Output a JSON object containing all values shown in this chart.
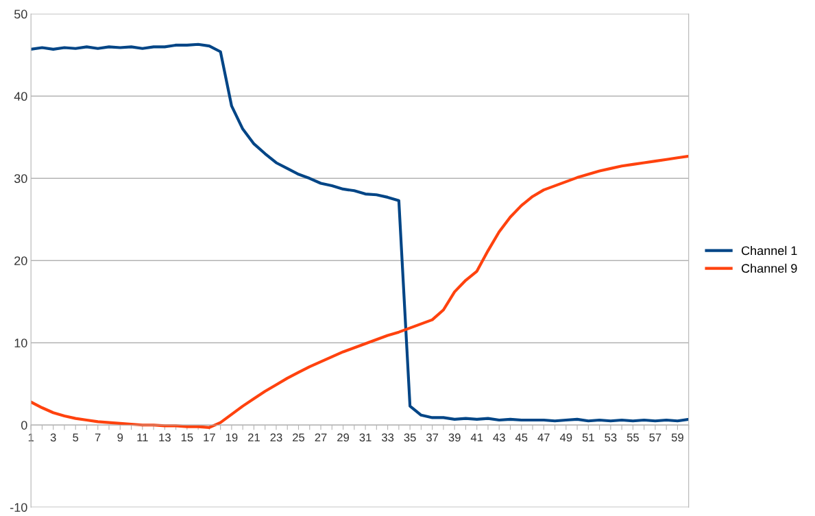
{
  "chart_data": {
    "type": "line",
    "categories": [
      "1",
      null,
      "3",
      null,
      "5",
      null,
      "7",
      null,
      "9",
      null,
      "11",
      null,
      "13",
      null,
      "15",
      null,
      "17",
      null,
      "19",
      null,
      "21",
      null,
      "23",
      null,
      "25",
      null,
      "27",
      null,
      "29",
      null,
      "31",
      null,
      "33",
      null,
      "35",
      null,
      "37",
      null,
      "39",
      null,
      "41",
      null,
      "43",
      null,
      "45",
      null,
      "47",
      null,
      "49",
      null,
      "51",
      null,
      "53",
      null,
      "55",
      null,
      "57",
      null,
      "59",
      null
    ],
    "series": [
      {
        "name": "Channel 1",
        "color": "#004586",
        "values": [
          45.7,
          45.9,
          45.7,
          45.9,
          45.8,
          46.0,
          45.8,
          46.0,
          45.9,
          46.0,
          45.8,
          46.0,
          46.0,
          46.2,
          46.2,
          46.3,
          46.1,
          45.4,
          38.8,
          36.0,
          34.2,
          33.0,
          31.9,
          31.2,
          30.5,
          30.0,
          29.4,
          29.1,
          28.7,
          28.5,
          28.1,
          28.0,
          27.7,
          27.3,
          2.3,
          1.2,
          0.9,
          0.9,
          0.7,
          0.8,
          0.7,
          0.8,
          0.6,
          0.7,
          0.6,
          0.6,
          0.6,
          0.5,
          0.6,
          0.7,
          0.5,
          0.6,
          0.5,
          0.6,
          0.5,
          0.6,
          0.5,
          0.6,
          0.5,
          0.7
        ]
      },
      {
        "name": "Channel 9",
        "color": "#ff420e",
        "values": [
          2.8,
          2.1,
          1.5,
          1.1,
          0.8,
          0.6,
          0.4,
          0.3,
          0.2,
          0.1,
          0.0,
          0.0,
          -0.1,
          -0.1,
          -0.2,
          -0.2,
          -0.3,
          0.3,
          1.3,
          2.3,
          3.2,
          4.1,
          4.9,
          5.7,
          6.4,
          7.1,
          7.7,
          8.3,
          8.9,
          9.4,
          9.9,
          10.4,
          10.9,
          11.3,
          11.8,
          12.3,
          12.8,
          14.0,
          16.2,
          17.6,
          18.7,
          21.2,
          23.5,
          25.3,
          26.7,
          27.8,
          28.6,
          29.1,
          29.6,
          30.1,
          30.5,
          30.9,
          31.2,
          31.5,
          31.7,
          31.9,
          32.1,
          32.3,
          32.5,
          32.7
        ]
      }
    ],
    "ylim": [
      -10,
      50
    ],
    "yticks": [
      -10,
      0,
      10,
      20,
      30,
      40,
      50
    ],
    "grid": "y",
    "legend": "right",
    "marker": "none",
    "line_style": "solid"
  }
}
